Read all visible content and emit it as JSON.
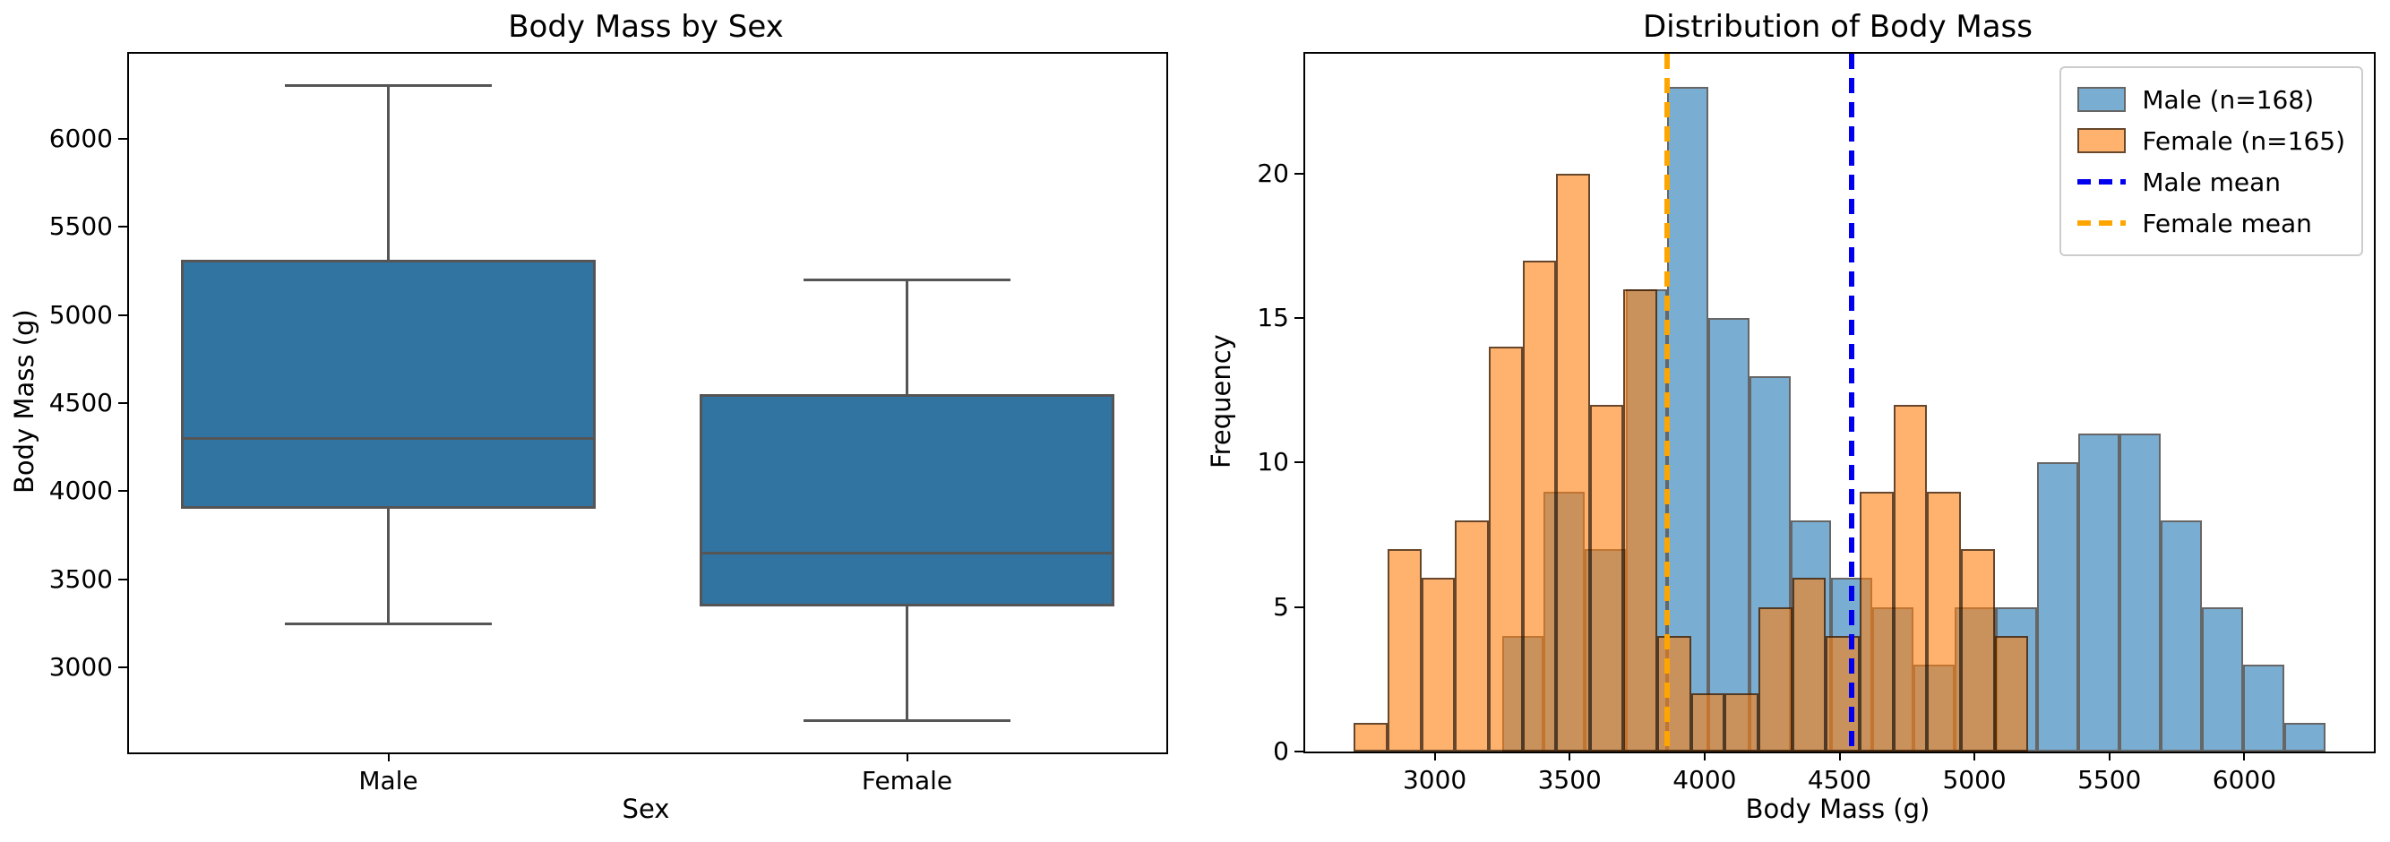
{
  "chart_data": [
    {
      "type": "box",
      "title": "Body Mass by Sex",
      "xlabel": "Sex",
      "ylabel": "Body Mass (g)",
      "ylim": [
        2520,
        6480
      ],
      "yticks": [
        3000,
        3500,
        4000,
        4500,
        5000,
        5500,
        6000
      ],
      "categories": [
        "Male",
        "Female"
      ],
      "series": [
        {
          "name": "Male",
          "min": 3250,
          "q1": 3900,
          "median": 4300,
          "q3": 5312.5,
          "max": 6300
        },
        {
          "name": "Female",
          "min": 2700,
          "q1": 3350,
          "median": 3650,
          "q3": 4550,
          "max": 5200
        }
      ],
      "box_fill": "#3173a1",
      "line_color": "#555555",
      "grid": false
    },
    {
      "type": "histogram",
      "title": "Distribution of Body Mass",
      "xlabel": "Body Mass (g)",
      "ylabel": "Frequency",
      "xlim": [
        2520,
        6480
      ],
      "ylim": [
        0,
        24.15
      ],
      "xticks": [
        3000,
        3500,
        4000,
        4500,
        5000,
        5500,
        6000
      ],
      "yticks": [
        0,
        5,
        10,
        15,
        20
      ],
      "series": [
        {
          "name": "Male (n=168)",
          "bin_start": 3250,
          "bin_width": 152.5,
          "counts": [
            4,
            9,
            7,
            16,
            23,
            15,
            13,
            8,
            6,
            5,
            3,
            5,
            5,
            10,
            11,
            11,
            8,
            5,
            3,
            1
          ],
          "fill": "#79add2",
          "edge": "#666666"
        },
        {
          "name": "Female (n=165)",
          "bin_start": 2700,
          "bin_width": 125,
          "counts": [
            1,
            7,
            6,
            8,
            14,
            17,
            20,
            12,
            16,
            4,
            2,
            2,
            5,
            6,
            4,
            9,
            12,
            9,
            7,
            4
          ],
          "fill": "rgba(255,127,14,0.6)",
          "edge": "rgba(0,0,0,0.6)"
        }
      ],
      "mean_lines": [
        {
          "name": "Male mean",
          "value": 4545.68,
          "color": "#0000ee"
        },
        {
          "name": "Female mean",
          "value": 3862.27,
          "color": "#ffa500"
        }
      ],
      "legend": [
        "Male (n=168)",
        "Female (n=165)",
        "Male mean",
        "Female mean"
      ],
      "legend_position": "upper right",
      "grid": false
    }
  ]
}
